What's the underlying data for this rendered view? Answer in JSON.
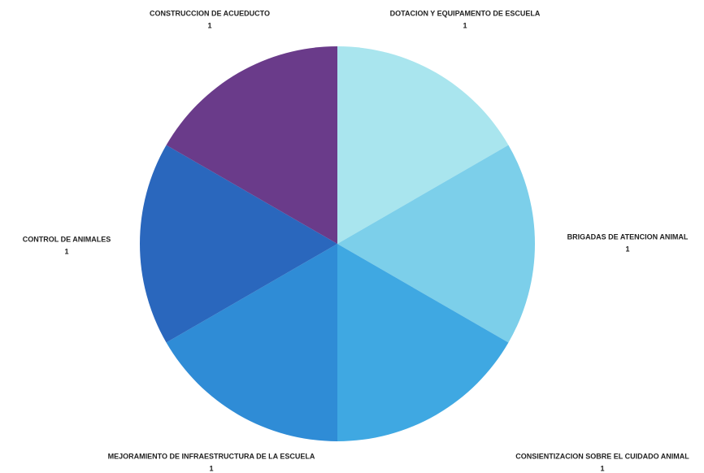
{
  "chart_data": {
    "type": "pie",
    "categories": [
      "DOTACION Y EQUIPAMENTO DE ESCUELA",
      "BRIGADAS DE ATENCION ANIMAL",
      "CONSIENTIZACION SOBRE EL CUIDADO ANIMAL",
      "MEJORAMIENTO DE INFRAESTRUCTURA DE LA ESCUELA",
      "CONTROL DE ANIMALES",
      "CONSTRUCCION DE ACUEDUCTO"
    ],
    "values": [
      1,
      1,
      1,
      1,
      1,
      1
    ],
    "colors": [
      "#a9e5ee",
      "#7ccfea",
      "#3fa8e2",
      "#2f8cd6",
      "#2a67bd",
      "#6a3b8a"
    ]
  }
}
